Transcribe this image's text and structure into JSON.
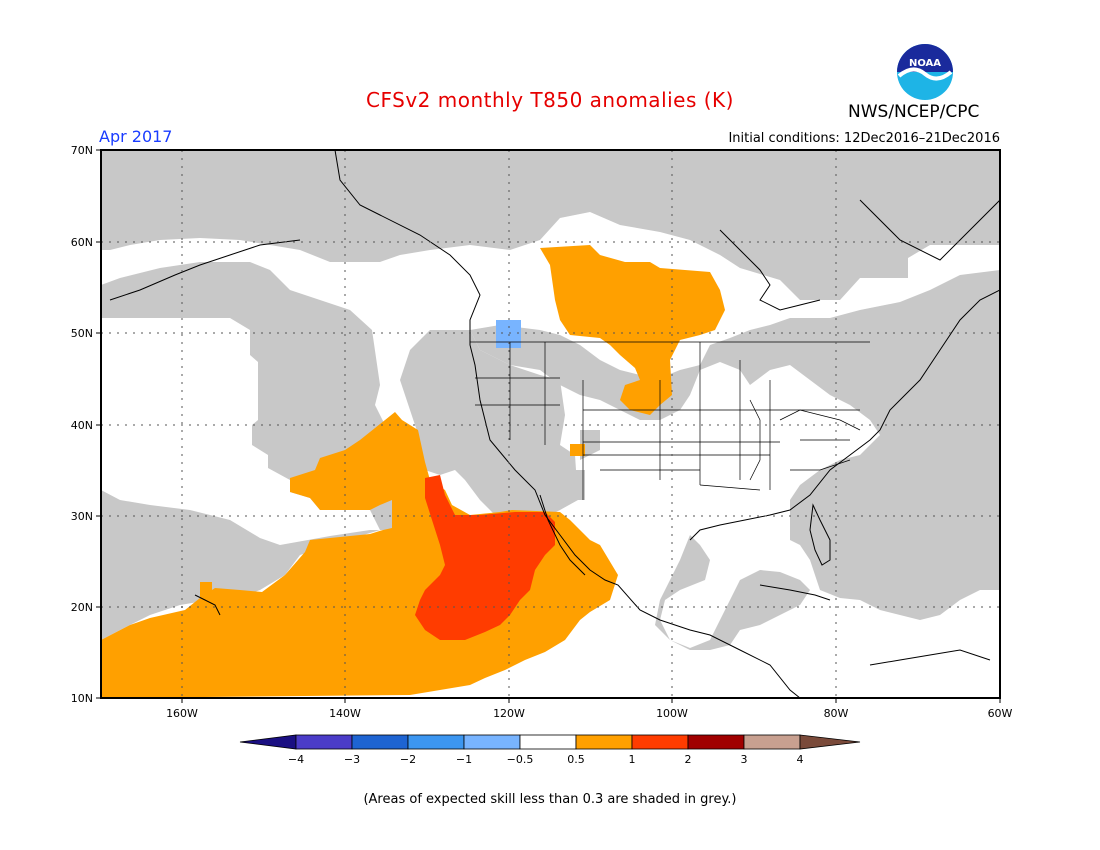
{
  "header": {
    "title": "CFSv2 monthly T850 anomalies (K)",
    "agency": "NWS/NCEP/CPC",
    "logo_text": "NOAA",
    "month": "Apr 2017",
    "initial_conditions": "Initial conditions: 12Dec2016–21Dec2016"
  },
  "map": {
    "lat_labels": [
      "70N",
      "60N",
      "50N",
      "40N",
      "30N",
      "20N",
      "10N"
    ],
    "lon_labels": [
      "160W",
      "140W",
      "120W",
      "100W",
      "80W",
      "60W"
    ],
    "colors": {
      "skill_grey": "#c8c8c8",
      "anom_05_1": "#ffa000",
      "anom_1_2": "#ff3c00",
      "anom_m1_m05": "#78b4ff",
      "land_outline": "#000000"
    }
  },
  "colorbar": {
    "tick_labels": [
      "−4",
      "−3",
      "−2",
      "−1",
      "−0.5",
      "0.5",
      "1",
      "2",
      "3",
      "4"
    ],
    "colors": [
      "#1a0f82",
      "#4b3cc8",
      "#1e64d2",
      "#3c96f0",
      "#78b4ff",
      "#ffffff",
      "#ffa000",
      "#ff3c00",
      "#a00000",
      "#c8a090",
      "#7a4a3a"
    ]
  },
  "footnote": "(Areas of expected skill less than 0.3 are shaded in grey.)"
}
